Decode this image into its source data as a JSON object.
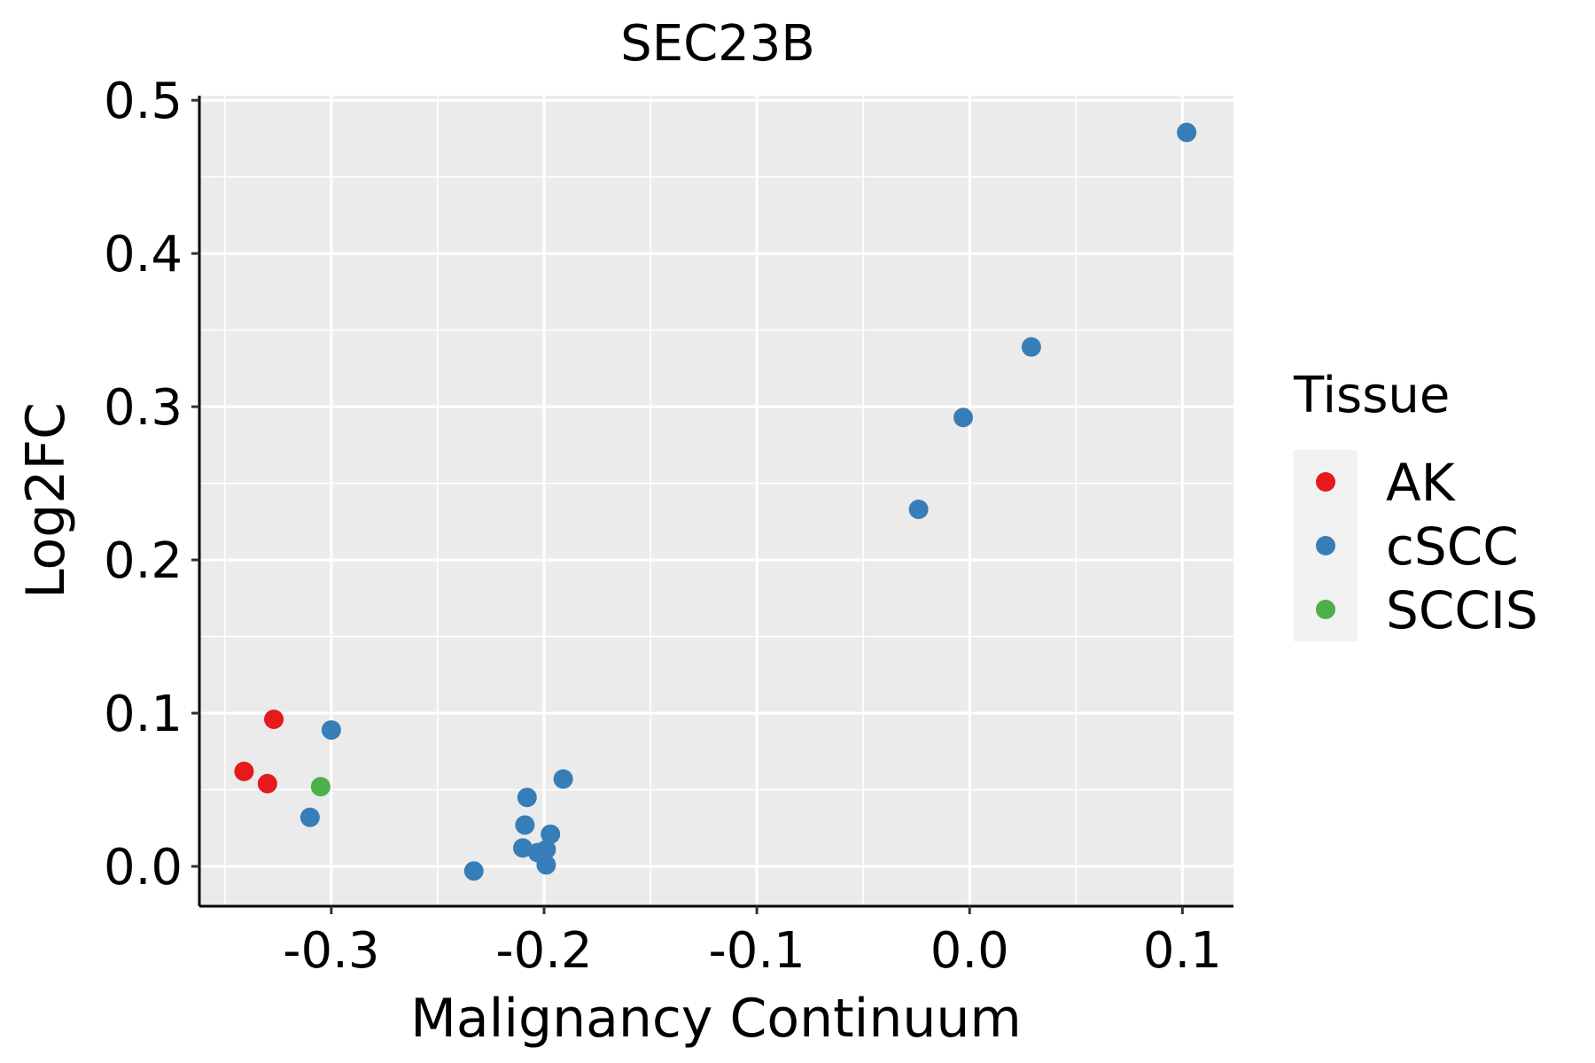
{
  "chart_data": {
    "type": "scatter",
    "title": "SEC23B",
    "xlabel": "Malignancy Continuum",
    "ylabel": "Log2FC",
    "xlim": [
      -0.362,
      0.124
    ],
    "ylim": [
      -0.026,
      0.503
    ],
    "xticks": [
      -0.3,
      -0.2,
      -0.1,
      0.0,
      0.1
    ],
    "xtick_labels": [
      "-0.3",
      "-0.2",
      "-0.1",
      "0.0",
      "0.1"
    ],
    "yticks": [
      0.0,
      0.1,
      0.2,
      0.3,
      0.4,
      0.5
    ],
    "ytick_labels": [
      "0.0",
      "0.1",
      "0.2",
      "0.3",
      "0.4",
      "0.5"
    ],
    "grid": true,
    "legend": {
      "title": "Tissue",
      "position": "right",
      "entries": [
        {
          "label": "AK",
          "color": "#E41A1C"
        },
        {
          "label": "cSCC",
          "color": "#377EB8"
        },
        {
          "label": "SCCIS",
          "color": "#4DAF4A"
        }
      ]
    },
    "series": [
      {
        "name": "AK",
        "color": "#E41A1C",
        "points": [
          {
            "x": -0.341,
            "y": 0.062
          },
          {
            "x": -0.33,
            "y": 0.054
          },
          {
            "x": -0.327,
            "y": 0.096
          }
        ]
      },
      {
        "name": "cSCC",
        "color": "#377EB8",
        "points": [
          {
            "x": -0.3,
            "y": 0.089
          },
          {
            "x": -0.31,
            "y": 0.032
          },
          {
            "x": -0.233,
            "y": -0.003
          },
          {
            "x": -0.208,
            "y": 0.045
          },
          {
            "x": -0.209,
            "y": 0.027
          },
          {
            "x": -0.21,
            "y": 0.012
          },
          {
            "x": -0.203,
            "y": 0.009
          },
          {
            "x": -0.199,
            "y": 0.011
          },
          {
            "x": -0.197,
            "y": 0.021
          },
          {
            "x": -0.199,
            "y": 0.001
          },
          {
            "x": -0.191,
            "y": 0.057
          },
          {
            "x": -0.024,
            "y": 0.233
          },
          {
            "x": -0.003,
            "y": 0.293
          },
          {
            "x": 0.029,
            "y": 0.339
          },
          {
            "x": 0.102,
            "y": 0.479
          }
        ]
      },
      {
        "name": "SCCIS",
        "color": "#4DAF4A",
        "points": [
          {
            "x": -0.305,
            "y": 0.052
          }
        ]
      }
    ]
  }
}
